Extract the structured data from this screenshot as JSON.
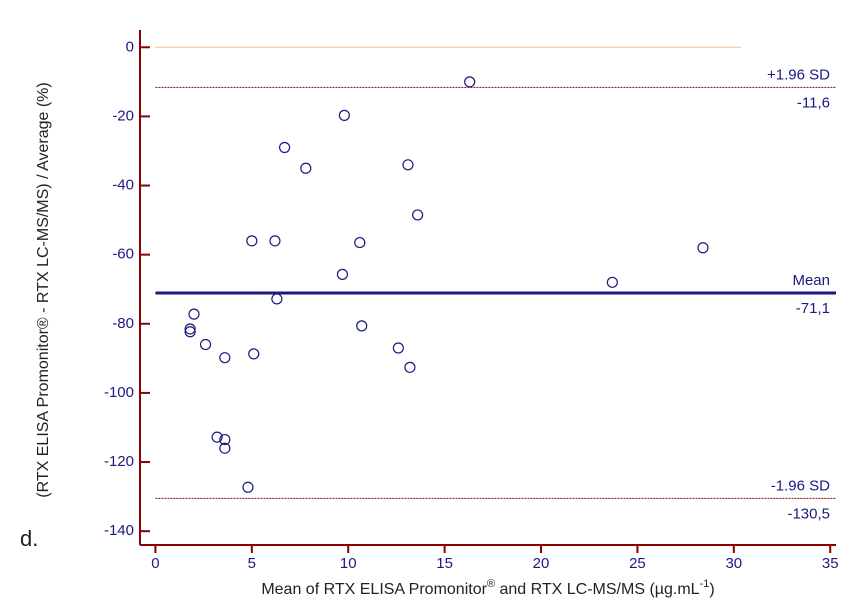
{
  "chart_data": {
    "type": "scatter",
    "panel_label": "d.",
    "ylabel": "(RTX ELISA Promonitor® - RTX LC-MS/MS) / Average (%)",
    "xlabel": [
      "Mean of RTX ELISA Promonitor",
      "®",
      " and RTX LC-MS/MS (µg.mL",
      "-1",
      ")"
    ],
    "xlim": [
      -0.8,
      35.3
    ],
    "ylim": [
      -144,
      5
    ],
    "xticks": [
      0,
      5,
      10,
      15,
      20,
      25,
      30,
      35
    ],
    "yticks": [
      0,
      -20,
      -40,
      -60,
      -80,
      -100,
      -120,
      -140
    ],
    "color": "#1a1a80",
    "axis_color": "#8b0000",
    "x": [
      16.3,
      9.8,
      6.7,
      7.8,
      13.1,
      13.6,
      5.0,
      6.2,
      10.6,
      28.4,
      23.7,
      9.7,
      6.3,
      2.0,
      1.8,
      1.8,
      10.7,
      2.6,
      3.6,
      5.1,
      12.6,
      13.2,
      3.2,
      3.6,
      3.6,
      4.8
    ],
    "values": [
      -10,
      -19.7,
      -29,
      -35,
      -34,
      -48.5,
      -56,
      -56,
      -56.5,
      -58,
      -68,
      -65.7,
      -72.8,
      -77.2,
      -81.5,
      -82.3,
      -80.6,
      -86,
      -89.8,
      -88.7,
      -87,
      -92.6,
      -112.8,
      -113.5,
      -116,
      -127.3
    ],
    "reference_lines": [
      {
        "name": "+1.96 SD",
        "value": -11.6,
        "label": "-11,6"
      },
      {
        "name": "Mean",
        "value": -71.1,
        "label": "-71,1"
      },
      {
        "name": "-1.96 SD",
        "value": -130.5,
        "label": "-130,5"
      }
    ],
    "zero_line": 0
  }
}
